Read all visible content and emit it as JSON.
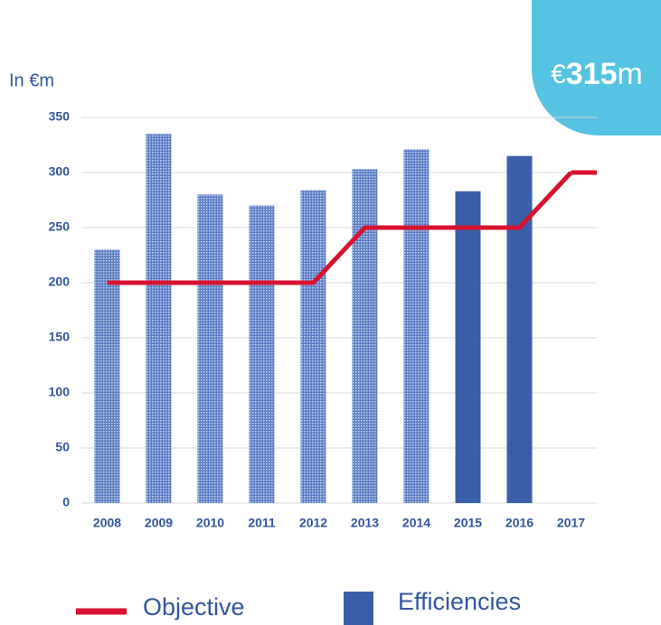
{
  "chart_data": {
    "type": "bar",
    "y_label": "In €m",
    "badge": {
      "prefix": "€",
      "value": 315,
      "suffix": "m",
      "color": "#55c3e2"
    },
    "categories": [
      "2008",
      "2009",
      "2010",
      "2011",
      "2012",
      "2013",
      "2014",
      "2015",
      "2016",
      "2017"
    ],
    "series": [
      {
        "name": "Efficiencies",
        "type": "bar",
        "color": "#3a5ea8",
        "values": [
          230,
          335,
          280,
          270,
          284,
          303,
          321,
          283,
          315,
          null
        ],
        "styles": [
          "dotted",
          "dotted",
          "dotted",
          "dotted",
          "dotted",
          "dotted",
          "dotted",
          "solid",
          "solid",
          null
        ]
      },
      {
        "name": "Objective",
        "type": "line",
        "color": "#d7122e",
        "values": [
          200,
          200,
          200,
          200,
          200,
          250,
          250,
          250,
          250,
          300
        ]
      }
    ],
    "ylim": [
      0,
      350
    ],
    "yticks": [
      0,
      50,
      100,
      150,
      200,
      250,
      300,
      350
    ],
    "grid": true
  }
}
